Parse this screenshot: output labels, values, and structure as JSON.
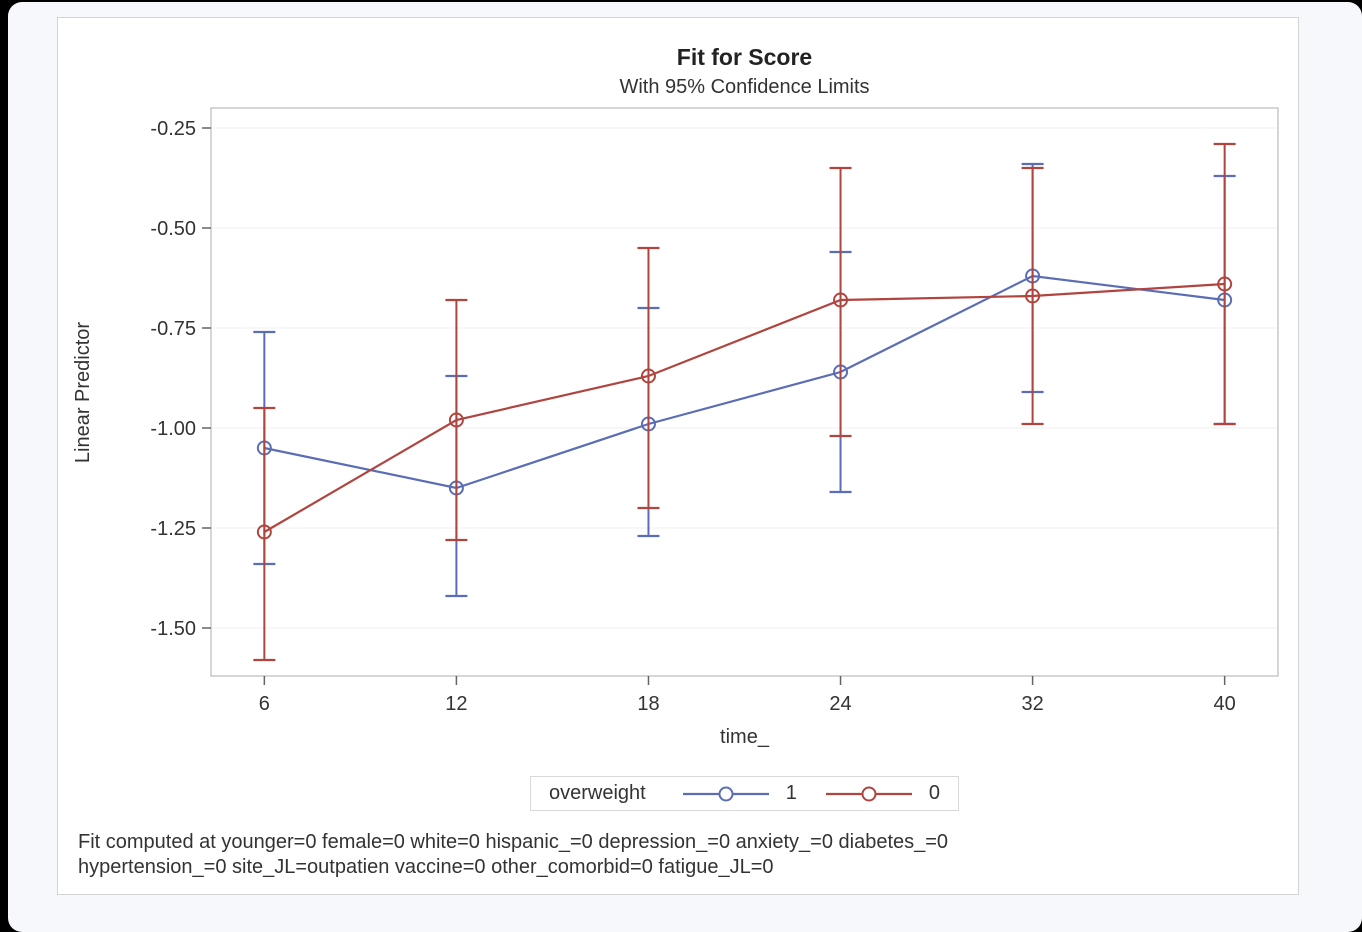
{
  "page": {
    "background_color": "#f7f8fc",
    "frame_color": "#000000",
    "panel_color": "#ffffff"
  },
  "chart_data": {
    "type": "line",
    "title": "Fit for Score",
    "subtitle": "With 95% Confidence Limits",
    "xlabel": "time_",
    "ylabel": "Linear Predictor",
    "x_categories": [
      "6",
      "12",
      "18",
      "24",
      "32",
      "40"
    ],
    "yticklabels": [
      "-0.25",
      "-0.50",
      "-0.75",
      "-1.00",
      "-1.25",
      "-1.50"
    ],
    "ytick_values": [
      -0.25,
      -0.5,
      -0.75,
      -1.0,
      -1.25,
      -1.5
    ],
    "ylim": [
      -1.62,
      -0.2
    ],
    "grid": "horizontal",
    "grid_color": "#efefef",
    "frame_color": "#c8c8c8",
    "tick_color": "#646464",
    "error_bars": "95% confidence limits",
    "legend_title": "overweight",
    "legend_position": "bottom",
    "series": [
      {
        "name": "1",
        "color": "#5b6db4",
        "values": [
          -1.05,
          -1.15,
          -0.99,
          -0.86,
          -0.62,
          -0.68
        ],
        "upper": [
          -0.76,
          -0.87,
          -0.7,
          -0.56,
          -0.34,
          -0.37
        ],
        "lower": [
          -1.34,
          -1.42,
          -1.27,
          -1.16,
          -0.91,
          -0.99
        ]
      },
      {
        "name": "0",
        "color": "#b0453f",
        "values": [
          -1.26,
          -0.98,
          -0.87,
          -0.68,
          -0.67,
          -0.64
        ],
        "upper": [
          -0.95,
          -0.68,
          -0.55,
          -0.35,
          -0.35,
          -0.29
        ],
        "lower": [
          -1.58,
          -1.28,
          -1.2,
          -1.02,
          -0.99,
          -0.99
        ]
      }
    ],
    "footnote_line1": "Fit computed at younger=0 female=0 white=0 hispanic_=0 depression_=0 anxiety_=0 diabetes_=0",
    "footnote_line2": "hypertension_=0 site_JL=outpatien vaccine=0 other_comorbid=0 fatigue_JL=0"
  }
}
